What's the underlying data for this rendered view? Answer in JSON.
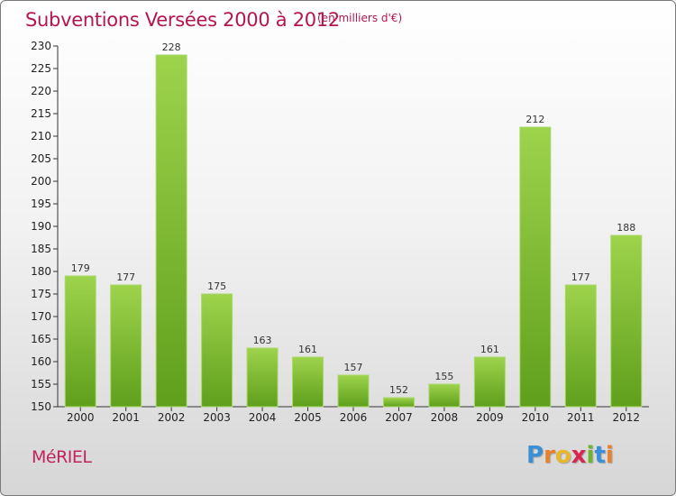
{
  "header": {
    "title": "Subventions Versées 2000 à 2012",
    "subtitle": "(en milliers d'€)"
  },
  "footer": {
    "commune": "MéRIEL",
    "logo_letters": [
      {
        "ch": "P",
        "color": "#3a8fd6"
      },
      {
        "ch": "r",
        "color": "#e8822a"
      },
      {
        "ch": "o",
        "color": "#e8b82a"
      },
      {
        "ch": "x",
        "color": "#d6284f"
      },
      {
        "ch": "i",
        "color": "#6fb52c"
      },
      {
        "ch": "t",
        "color": "#3a8fd6"
      },
      {
        "ch": "i",
        "color": "#e8822a"
      }
    ]
  },
  "colors": {
    "bar_top": "#9ed34c",
    "bar_bottom": "#5f9f1c",
    "accent": "#b5154f"
  },
  "chart_data": {
    "type": "bar",
    "title": "Subventions Versées 2000 à 2012",
    "subtitle": "(en milliers d'€)",
    "categories": [
      "2000",
      "2001",
      "2002",
      "2003",
      "2004",
      "2005",
      "2006",
      "2007",
      "2008",
      "2009",
      "2010",
      "2011",
      "2012"
    ],
    "values": [
      179,
      177,
      228,
      175,
      163,
      161,
      157,
      152,
      155,
      161,
      212,
      177,
      188
    ],
    "ylim": [
      150,
      230
    ],
    "yticks": [
      150,
      155,
      160,
      165,
      170,
      175,
      180,
      185,
      190,
      195,
      200,
      205,
      210,
      215,
      220,
      225,
      230
    ],
    "grid": false,
    "xlabel": "",
    "ylabel": ""
  }
}
